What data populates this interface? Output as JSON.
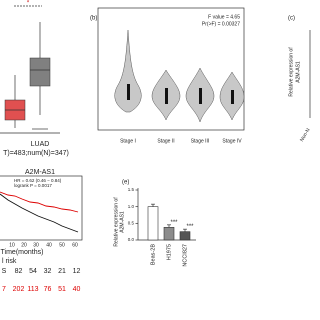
{
  "panel_a": {
    "significance": "*",
    "cohort": "LUAD",
    "sample_note": "T)=483;num(N)=347)"
  },
  "panel_b": {
    "label": "(b)",
    "f_value": "F value = 4.65",
    "p_value": "Pr(>F) = 0.00327",
    "stages": [
      "Stage I",
      "Stage II",
      "Stage III",
      "Stage IV"
    ]
  },
  "panel_c": {
    "label": "(c)",
    "y_label": [
      "Relative expression of",
      "A2M-AS1"
    ],
    "category": "Non-N"
  },
  "panel_d": {
    "title": "A2M-AS1",
    "hr": "HR = 0.62 (0.46 − 0.84)",
    "logrank": "logrank P = 0.0017",
    "x_ticks": [
      "10",
      "20",
      "30",
      "40",
      "50",
      "60"
    ],
    "x_label": "Time(months)",
    "risk_label": "l risk",
    "risk_rows": [
      [
        "S",
        "82",
        "54",
        "32",
        "21",
        "12"
      ],
      [
        "7",
        "202",
        "113",
        "76",
        "51",
        "40"
      ]
    ]
  },
  "panel_e": {
    "label": "(e)",
    "y_label": [
      "Relative expression of",
      "A2M-AS1"
    ],
    "ylim": [
      0,
      1.5
    ],
    "yticks": [
      {
        "value": 0,
        "label": "0.0"
      },
      {
        "value": 0.5,
        "label": "0.5"
      },
      {
        "value": 1,
        "label": "1.0"
      },
      {
        "value": 1.5,
        "label": "1.5"
      }
    ],
    "categories": [
      "Beas-2B",
      "H1975",
      "NCCI827"
    ],
    "values": [
      1,
      0.38,
      0.25
    ],
    "colors": [
      "#ffffff",
      "#8c8c8c",
      "#555555"
    ],
    "significance": [
      null,
      "***",
      "***"
    ]
  }
}
